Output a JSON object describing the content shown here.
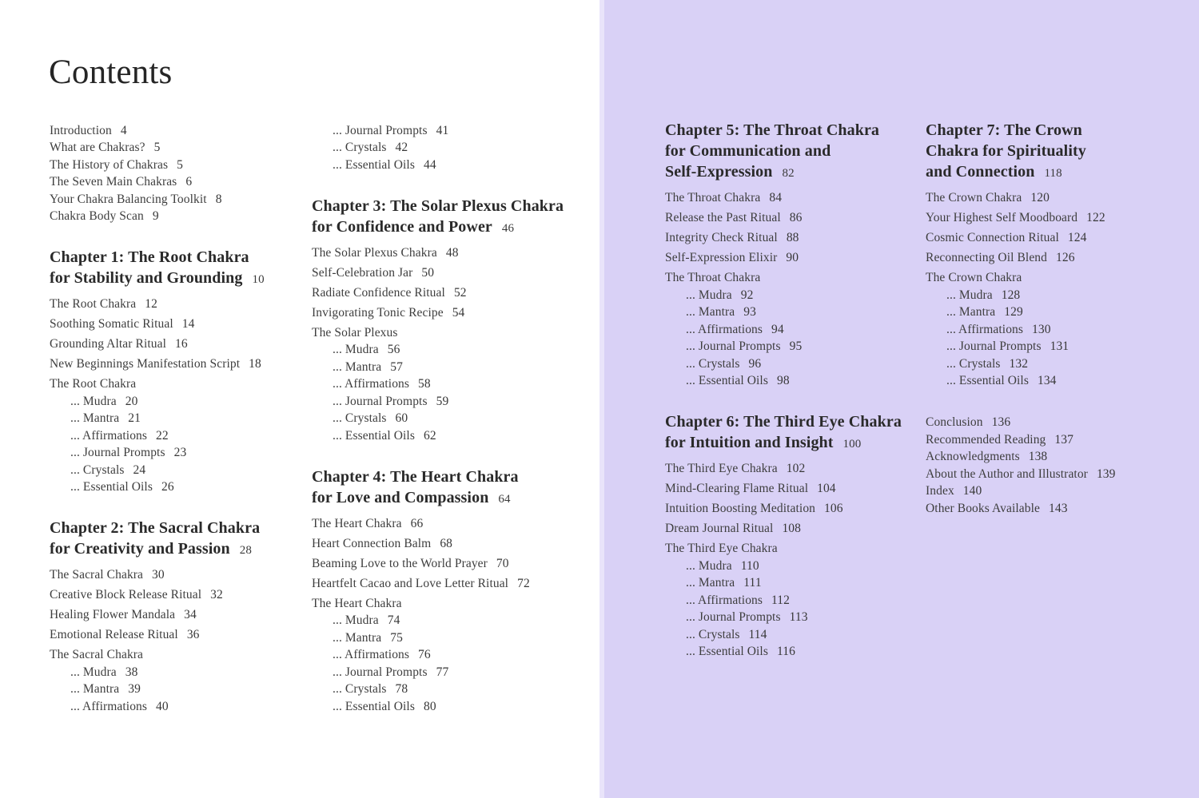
{
  "title": "Contents",
  "colors": {
    "left_page_bg": "#ffffff",
    "right_page_bg": "#d9d1f6",
    "heading_text": "#2a2a2a",
    "body_text": "#3e3e3e"
  },
  "columns": [
    {
      "blocks": [
        {
          "type": "list",
          "entries": [
            {
              "label": "Introduction",
              "page": "4"
            },
            {
              "label": "What are Chakras?",
              "page": "5"
            },
            {
              "label": "The History of Chakras",
              "page": "5"
            },
            {
              "label": "The Seven Main Chakras",
              "page": "6"
            },
            {
              "label": "Your Chakra Balancing Toolkit",
              "page": "8"
            },
            {
              "label": "Chakra Body Scan",
              "page": "9"
            }
          ]
        },
        {
          "type": "chapter",
          "heading": [
            "Chapter 1: The Root Chakra",
            "for Stability and Grounding"
          ],
          "page": "10",
          "entries": [
            {
              "label": "The Root Chakra",
              "page": "12"
            },
            {
              "label": "Soothing Somatic Ritual",
              "page": "14"
            },
            {
              "label": "Grounding Altar Ritual",
              "page": "16"
            },
            {
              "label": "New Beginnings Manifestation Script",
              "page": "18"
            },
            {
              "label": "The Root Chakra",
              "page": ""
            },
            {
              "label": "... Mudra",
              "page": "20",
              "sub": true
            },
            {
              "label": "... Mantra",
              "page": "21",
              "sub": true
            },
            {
              "label": "... Affirmations",
              "page": "22",
              "sub": true
            },
            {
              "label": "... Journal Prompts",
              "page": "23",
              "sub": true
            },
            {
              "label": "... Crystals",
              "page": "24",
              "sub": true
            },
            {
              "label": "... Essential Oils",
              "page": "26",
              "sub": true
            }
          ]
        },
        {
          "type": "chapter",
          "heading": [
            "Chapter 2: The Sacral Chakra",
            "for Creativity and Passion"
          ],
          "page": "28",
          "entries": [
            {
              "label": "The Sacral Chakra",
              "page": "30"
            },
            {
              "label": "Creative Block Release Ritual",
              "page": "32"
            },
            {
              "label": "Healing Flower Mandala",
              "page": "34"
            },
            {
              "label": "Emotional Release Ritual",
              "page": "36"
            },
            {
              "label": "The Sacral Chakra",
              "page": ""
            },
            {
              "label": "... Mudra",
              "page": "38",
              "sub": true
            },
            {
              "label": "... Mantra",
              "page": "39",
              "sub": true
            },
            {
              "label": "... Affirmations",
              "page": "40",
              "sub": true
            }
          ]
        }
      ]
    },
    {
      "blocks": [
        {
          "type": "list",
          "entries": [
            {
              "label": "... Journal Prompts",
              "page": "41",
              "sub": true
            },
            {
              "label": "... Crystals",
              "page": "42",
              "sub": true
            },
            {
              "label": "... Essential Oils",
              "page": "44",
              "sub": true
            }
          ]
        },
        {
          "type": "chapter",
          "heading": [
            "Chapter 3: The Solar Plexus Chakra",
            "for Confidence and Power"
          ],
          "page": "46",
          "entries": [
            {
              "label": "The Solar Plexus Chakra",
              "page": "48"
            },
            {
              "label": "Self-Celebration Jar",
              "page": "50"
            },
            {
              "label": "Radiate Confidence Ritual",
              "page": "52"
            },
            {
              "label": "Invigorating Tonic Recipe",
              "page": "54"
            },
            {
              "label": "The Solar Plexus",
              "page": ""
            },
            {
              "label": "... Mudra",
              "page": "56",
              "sub": true
            },
            {
              "label": "... Mantra",
              "page": "57",
              "sub": true
            },
            {
              "label": "... Affirmations",
              "page": "58",
              "sub": true
            },
            {
              "label": "... Journal Prompts",
              "page": "59",
              "sub": true
            },
            {
              "label": "... Crystals",
              "page": "60",
              "sub": true
            },
            {
              "label": "... Essential Oils",
              "page": "62",
              "sub": true
            }
          ]
        },
        {
          "type": "chapter",
          "heading": [
            "Chapter 4: The Heart Chakra",
            "for Love and Compassion"
          ],
          "page": "64",
          "entries": [
            {
              "label": "The Heart Chakra",
              "page": "66"
            },
            {
              "label": "Heart Connection Balm",
              "page": "68"
            },
            {
              "label": "Beaming Love to the World Prayer",
              "page": "70"
            },
            {
              "label": "Heartfelt Cacao and Love Letter Ritual",
              "page": "72"
            },
            {
              "label": "The Heart Chakra",
              "page": ""
            },
            {
              "label": "... Mudra",
              "page": "74",
              "sub": true
            },
            {
              "label": "... Mantra",
              "page": "75",
              "sub": true
            },
            {
              "label": "... Affirmations",
              "page": "76",
              "sub": true
            },
            {
              "label": "... Journal Prompts",
              "page": "77",
              "sub": true
            },
            {
              "label": "... Crystals",
              "page": "78",
              "sub": true
            },
            {
              "label": "... Essential Oils",
              "page": "80",
              "sub": true
            }
          ]
        }
      ]
    },
    {
      "blocks": [
        {
          "type": "chapter",
          "heading": [
            "Chapter 5: The Throat Chakra",
            "for Communication and",
            "Self-Expression"
          ],
          "page": "82",
          "entries": [
            {
              "label": "The Throat Chakra",
              "page": "84"
            },
            {
              "label": "Release the Past Ritual",
              "page": "86"
            },
            {
              "label": "Integrity Check Ritual",
              "page": "88"
            },
            {
              "label": "Self-Expression Elixir",
              "page": "90"
            },
            {
              "label": "The Throat Chakra",
              "page": ""
            },
            {
              "label": "... Mudra",
              "page": "92",
              "sub": true
            },
            {
              "label": "... Mantra",
              "page": "93",
              "sub": true
            },
            {
              "label": "... Affirmations",
              "page": "94",
              "sub": true
            },
            {
              "label": "... Journal Prompts",
              "page": "95",
              "sub": true
            },
            {
              "label": "... Crystals",
              "page": "96",
              "sub": true
            },
            {
              "label": "... Essential Oils",
              "page": "98",
              "sub": true
            }
          ]
        },
        {
          "type": "chapter",
          "heading": [
            "Chapter 6: The Third Eye Chakra",
            "for Intuition and Insight"
          ],
          "page": "100",
          "entries": [
            {
              "label": "The Third Eye Chakra",
              "page": "102"
            },
            {
              "label": "Mind-Clearing Flame Ritual",
              "page": "104"
            },
            {
              "label": "Intuition Boosting Meditation",
              "page": "106"
            },
            {
              "label": "Dream Journal Ritual",
              "page": "108"
            },
            {
              "label": "The Third Eye Chakra",
              "page": ""
            },
            {
              "label": "... Mudra",
              "page": "110",
              "sub": true
            },
            {
              "label": "... Mantra",
              "page": "111",
              "sub": true
            },
            {
              "label": "... Affirmations",
              "page": "112",
              "sub": true
            },
            {
              "label": "... Journal Prompts",
              "page": "113",
              "sub": true
            },
            {
              "label": "... Crystals",
              "page": "114",
              "sub": true
            },
            {
              "label": "... Essential Oils",
              "page": "116",
              "sub": true
            }
          ]
        }
      ]
    },
    {
      "blocks": [
        {
          "type": "chapter",
          "heading": [
            "Chapter 7: The Crown",
            "Chakra for Spirituality",
            "and Connection"
          ],
          "page": "118",
          "entries": [
            {
              "label": "The Crown Chakra",
              "page": "120"
            },
            {
              "label": "Your Highest Self Moodboard",
              "page": "122"
            },
            {
              "label": "Cosmic Connection Ritual",
              "page": "124"
            },
            {
              "label": "Reconnecting Oil Blend",
              "page": "126"
            },
            {
              "label": "The Crown Chakra",
              "page": ""
            },
            {
              "label": "... Mudra",
              "page": "128",
              "sub": true
            },
            {
              "label": "... Mantra",
              "page": "129",
              "sub": true
            },
            {
              "label": "... Affirmations",
              "page": "130",
              "sub": true
            },
            {
              "label": "... Journal Prompts",
              "page": "131",
              "sub": true
            },
            {
              "label": "... Crystals",
              "page": "132",
              "sub": true
            },
            {
              "label": "... Essential Oils",
              "page": "134",
              "sub": true
            }
          ]
        },
        {
          "type": "backlist",
          "entries": [
            {
              "label": "Conclusion",
              "page": "136"
            },
            {
              "label": "Recommended Reading",
              "page": "137"
            },
            {
              "label": "Acknowledgments",
              "page": "138"
            },
            {
              "label": "About the Author and Illustrator",
              "page": "139"
            },
            {
              "label": "Index",
              "page": "140"
            },
            {
              "label": "Other Books Available",
              "page": "143"
            }
          ]
        }
      ]
    }
  ]
}
